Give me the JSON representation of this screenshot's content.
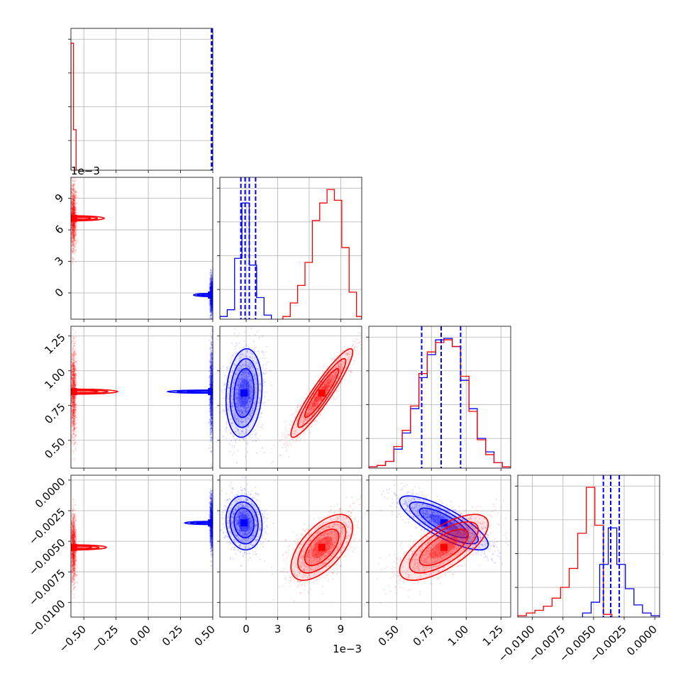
{
  "chart_data": [
    {
      "type": "histogram",
      "panel": "marginal-param-1",
      "xlim": [
        -0.6,
        0.5
      ],
      "grid": true,
      "series": [
        {
          "color": "red",
          "bin_edges": [
            -0.6,
            -0.58,
            -0.56,
            -0.54
          ],
          "counts": [
            0.94,
            0.3,
            0.0
          ]
        },
        {
          "color": "blue",
          "bin_edges": [
            0.48,
            0.49,
            0.5
          ],
          "counts": [
            0.0,
            0.0
          ]
        }
      ],
      "quantile_lines": [
        0.49,
        0.494,
        0.497
      ]
    },
    {
      "type": "histogram",
      "panel": "marginal-param-2",
      "xlim": [
        -0.0025,
        0.011
      ],
      "x_offset_label": "1e−3",
      "x_ticks": [
        0,
        3,
        6,
        9
      ],
      "grid": true,
      "series": [
        {
          "color": "blue",
          "bin_edges": [
            -0.0025,
            -0.0018,
            -0.0011,
            -0.0004,
            0.0003,
            0.001,
            0.0017,
            0.0024
          ],
          "counts": [
            0.02,
            0.07,
            0.45,
            0.86,
            0.4,
            0.16,
            0.03
          ]
        },
        {
          "color": "red",
          "bin_edges": [
            0.0035,
            0.0042,
            0.0049,
            0.0056,
            0.0063,
            0.007,
            0.0077,
            0.0084,
            0.0091,
            0.0098,
            0.0105,
            0.011
          ],
          "counts": [
            0.02,
            0.12,
            0.25,
            0.42,
            0.73,
            0.86,
            0.96,
            0.88,
            0.53,
            0.2,
            0.02
          ]
        }
      ],
      "quantile_lines": [
        -0.0005,
        -0.0001,
        0.0003,
        0.0009
      ]
    },
    {
      "type": "histogram",
      "panel": "marginal-param-3",
      "xlim": [
        0.3,
        1.32
      ],
      "grid": true,
      "series": [
        {
          "color": "blue",
          "bin_edges": [
            0.3,
            0.36,
            0.42,
            0.48,
            0.54,
            0.6,
            0.66,
            0.72,
            0.78,
            0.84,
            0.9,
            0.96,
            1.02,
            1.08,
            1.14,
            1.2,
            1.26,
            1.32
          ],
          "counts": [
            0.01,
            0.02,
            0.05,
            0.14,
            0.26,
            0.44,
            0.67,
            0.84,
            0.95,
            0.96,
            0.9,
            0.65,
            0.44,
            0.22,
            0.12,
            0.04,
            0.01
          ]
        },
        {
          "color": "red",
          "bin_edges": [
            0.3,
            0.36,
            0.42,
            0.48,
            0.54,
            0.6,
            0.66,
            0.72,
            0.78,
            0.84,
            0.9,
            0.96,
            1.02,
            1.08,
            1.14,
            1.2,
            1.26,
            1.32
          ],
          "counts": [
            0.01,
            0.02,
            0.05,
            0.16,
            0.28,
            0.46,
            0.7,
            0.86,
            0.93,
            0.95,
            0.9,
            0.68,
            0.42,
            0.21,
            0.1,
            0.04,
            0.01
          ]
        }
      ],
      "quantile_lines": [
        0.68,
        0.82,
        0.96
      ]
    },
    {
      "type": "histogram",
      "panel": "marginal-param-4",
      "xlim": [
        -0.0112,
        0.0004
      ],
      "x_ticks": [
        -0.01,
        -0.0075,
        -0.005,
        -0.0025,
        0.0
      ],
      "x_tick_labels": [
        "−0.0100",
        "−0.0075",
        "−0.0050",
        "−0.0025",
        "0.0000"
      ],
      "grid": true,
      "series": [
        {
          "color": "red",
          "bin_edges": [
            -0.0112,
            -0.0105,
            -0.0098,
            -0.0091,
            -0.0084,
            -0.0077,
            -0.007,
            -0.0063,
            -0.0056,
            -0.0049,
            -0.0042,
            -0.0035
          ],
          "counts": [
            0.01,
            0.03,
            0.05,
            0.08,
            0.14,
            0.22,
            0.36,
            0.62,
            0.96,
            0.68,
            0.02
          ]
        },
        {
          "color": "blue",
          "bin_edges": [
            -0.0059,
            -0.0052,
            -0.0045,
            -0.0038,
            -0.0031,
            -0.0024,
            -0.0017,
            -0.001,
            -0.0003,
            0.0004
          ],
          "counts": [
            0.03,
            0.11,
            0.39,
            0.66,
            0.39,
            0.21,
            0.09,
            0.03,
            0.01
          ]
        }
      ],
      "quantile_lines": [
        -0.0042,
        -0.0036,
        -0.0029
      ]
    },
    {
      "type": "scatter",
      "panel": "param-1-vs-param-2",
      "xlim": [
        -0.6,
        0.5
      ],
      "ylim": [
        -0.0025,
        0.011
      ],
      "y_offset_label": "1e−3",
      "y_ticks": [
        0,
        3,
        6,
        9
      ],
      "clouds": [
        {
          "color": "red",
          "cx": -0.58,
          "cy": 0.0071,
          "sx": 0.008,
          "sy": 0.0012,
          "rho": 0
        },
        {
          "color": "blue",
          "cx": 0.49,
          "cy": -0.0002,
          "sx": 0.005,
          "sy": 0.0007,
          "rho": 0
        }
      ]
    },
    {
      "type": "scatter",
      "panel": "param-1-vs-param-3",
      "xlim": [
        -0.6,
        0.5
      ],
      "ylim": [
        0.3,
        1.32
      ],
      "y_ticks": [
        0.5,
        0.75,
        1.0,
        1.25
      ],
      "y_tick_labels": [
        "0.50",
        "0.75",
        "1.00",
        "1.25"
      ],
      "clouds": [
        {
          "color": "red",
          "cx": -0.58,
          "cy": 0.85,
          "sx": 0.008,
          "sy": 0.13,
          "rho": 0
        },
        {
          "color": "blue",
          "cx": 0.49,
          "cy": 0.85,
          "sx": 0.005,
          "sy": 0.13,
          "rho": 0
        }
      ]
    },
    {
      "type": "scatter",
      "panel": "param-2-vs-param-3",
      "xlim": [
        -0.0025,
        0.011
      ],
      "ylim": [
        0.3,
        1.32
      ],
      "clouds": [
        {
          "color": "blue",
          "cx": -0.0002,
          "cy": 0.84,
          "sx": 0.0007,
          "sy": 0.13,
          "rho": 0.15
        },
        {
          "color": "red",
          "cx": 0.0072,
          "cy": 0.84,
          "sx": 0.0012,
          "sy": 0.13,
          "rho": 0.93
        }
      ]
    },
    {
      "type": "scatter",
      "panel": "param-1-vs-param-4",
      "xlim": [
        -0.6,
        0.5
      ],
      "ylim": [
        -0.0112,
        0.0004
      ],
      "y_ticks": [
        -0.01,
        -0.0075,
        -0.005,
        -0.0025,
        0.0
      ],
      "y_tick_labels": [
        "−0.0100",
        "−0.0075",
        "−0.0050",
        "−0.0025",
        "0.0000"
      ],
      "x_ticks": [
        -0.5,
        -0.25,
        0.0,
        0.25,
        0.5
      ],
      "x_tick_labels": [
        "−0.50",
        "−0.25",
        "0.00",
        "0.25",
        "0.50"
      ],
      "clouds": [
        {
          "color": "red",
          "cx": -0.58,
          "cy": -0.0055,
          "sx": 0.008,
          "sy": 0.0011,
          "rho": 0
        },
        {
          "color": "blue",
          "cx": 0.49,
          "cy": -0.0035,
          "sx": 0.005,
          "sy": 0.0009,
          "rho": 0
        }
      ]
    },
    {
      "type": "scatter",
      "panel": "param-2-vs-param-4",
      "xlim": [
        -0.0025,
        0.011
      ],
      "ylim": [
        -0.0112,
        0.0004
      ],
      "x_offset_label": "1e−3",
      "x_ticks": [
        0,
        3,
        6,
        9
      ],
      "clouds": [
        {
          "color": "blue",
          "cx": -0.0002,
          "cy": -0.0035,
          "sx": 0.0007,
          "sy": 0.0009,
          "rho": -0.1
        },
        {
          "color": "red",
          "cx": 0.0072,
          "cy": -0.0055,
          "sx": 0.0012,
          "sy": 0.0011,
          "rho": 0.6
        }
      ]
    },
    {
      "type": "scatter",
      "panel": "param-3-vs-param-4",
      "xlim": [
        0.3,
        1.32
      ],
      "ylim": [
        -0.0112,
        0.0004
      ],
      "x_ticks": [
        0.5,
        0.75,
        1.0,
        1.25
      ],
      "x_tick_labels": [
        "0.50",
        "0.75",
        "1.00",
        "1.25"
      ],
      "clouds": [
        {
          "color": "blue",
          "cx": 0.84,
          "cy": -0.0035,
          "sx": 0.13,
          "sy": 0.0009,
          "rho": -0.8
        },
        {
          "color": "red",
          "cx": 0.84,
          "cy": -0.0055,
          "sx": 0.13,
          "sy": 0.0011,
          "rho": 0.7
        }
      ]
    }
  ],
  "colors": {
    "red_series": "#ff0000",
    "blue_series": "#0000ff",
    "grid": "#b0b0b0"
  }
}
